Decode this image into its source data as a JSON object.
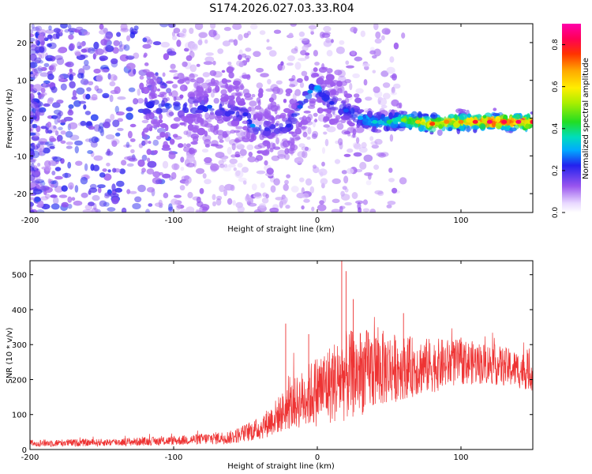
{
  "title": "S174.2026.027.03.33.R04",
  "chart_data": [
    {
      "type": "heatmap",
      "name": "spectrogram",
      "xlabel": "Height of straight line (km)",
      "ylabel": "Frequency (Hz)",
      "xlim": [
        -200,
        150
      ],
      "ylim": [
        -25,
        25
      ],
      "xticks": [
        -200,
        -100,
        0,
        100
      ],
      "xtick_labels": [
        "-200",
        "-100",
        "0",
        "100"
      ],
      "yticks": [
        -20,
        -10,
        0,
        10,
        20
      ],
      "ytick_labels": [
        "-20",
        "-10",
        "0",
        "10",
        "20"
      ],
      "colorbar": {
        "label": "Normalized spectral amplitude",
        "range": [
          0.0,
          0.9
        ],
        "ticks": [
          0.0,
          0.2,
          0.4,
          0.6,
          0.8
        ],
        "tick_labels": [
          "0.0",
          "0.2",
          "0.4",
          "0.6",
          "0.8"
        ],
        "colormap": "rainbow"
      },
      "ridge": [
        {
          "x": -75,
          "y": 3,
          "v": 0.25
        },
        {
          "x": -50,
          "y": 1,
          "v": 0.22
        },
        {
          "x": -45,
          "y": -2,
          "v": 0.28
        },
        {
          "x": -35,
          "y": -3,
          "v": 0.2
        },
        {
          "x": -20,
          "y": -2,
          "v": 0.22
        },
        {
          "x": -12,
          "y": 3,
          "v": 0.25
        },
        {
          "x": -5,
          "y": 7,
          "v": 0.28
        },
        {
          "x": 0,
          "y": 8,
          "v": 0.3
        },
        {
          "x": 10,
          "y": 4,
          "v": 0.22
        },
        {
          "x": 20,
          "y": 2,
          "v": 0.25
        },
        {
          "x": 30,
          "y": 0,
          "v": 0.3
        },
        {
          "x": 40,
          "y": -1,
          "v": 0.35
        },
        {
          "x": 50,
          "y": -1,
          "v": 0.4
        },
        {
          "x": 60,
          "y": -0.5,
          "v": 0.5
        },
        {
          "x": 70,
          "y": -1,
          "v": 0.65
        },
        {
          "x": 80,
          "y": -1.5,
          "v": 0.75
        },
        {
          "x": 90,
          "y": -1,
          "v": 0.7
        },
        {
          "x": 100,
          "y": -1,
          "v": 0.7
        },
        {
          "x": 110,
          "y": -1,
          "v": 0.8
        },
        {
          "x": 120,
          "y": -1,
          "v": 0.85
        },
        {
          "x": 130,
          "y": -1,
          "v": 0.82
        },
        {
          "x": 140,
          "y": -1,
          "v": 0.85
        },
        {
          "x": 150,
          "y": -1,
          "v": 0.8
        }
      ]
    },
    {
      "type": "line",
      "name": "snr",
      "xlabel": "Height of straight line (km)",
      "ylabel": "SNR (10 * v/v)",
      "xlim": [
        -200,
        150
      ],
      "ylim": [
        0,
        540
      ],
      "xticks": [
        -200,
        -100,
        0,
        100
      ],
      "xtick_labels": [
        "-200",
        "-100",
        "0",
        "100"
      ],
      "yticks": [
        0,
        100,
        200,
        300,
        400,
        500
      ],
      "ytick_labels": [
        "0",
        "100",
        "200",
        "300",
        "400",
        "500"
      ],
      "color": "#ee3333",
      "envelope_x": [
        -200,
        -150,
        -100,
        -60,
        -40,
        -20,
        0,
        20,
        40,
        60,
        80,
        100,
        120,
        150
      ],
      "envelope_mean": [
        18,
        20,
        25,
        35,
        60,
        120,
        170,
        210,
        230,
        235,
        240,
        250,
        245,
        220
      ],
      "envelope_spread": [
        8,
        8,
        10,
        15,
        25,
        50,
        80,
        100,
        90,
        70,
        60,
        50,
        45,
        40
      ],
      "peaks": [
        {
          "x": -22,
          "y": 360
        },
        {
          "x": -6,
          "y": 330
        },
        {
          "x": 17,
          "y": 540
        },
        {
          "x": 20,
          "y": 510
        },
        {
          "x": 25,
          "y": 430
        },
        {
          "x": 60,
          "y": 390
        },
        {
          "x": 100,
          "y": 320
        }
      ]
    }
  ]
}
